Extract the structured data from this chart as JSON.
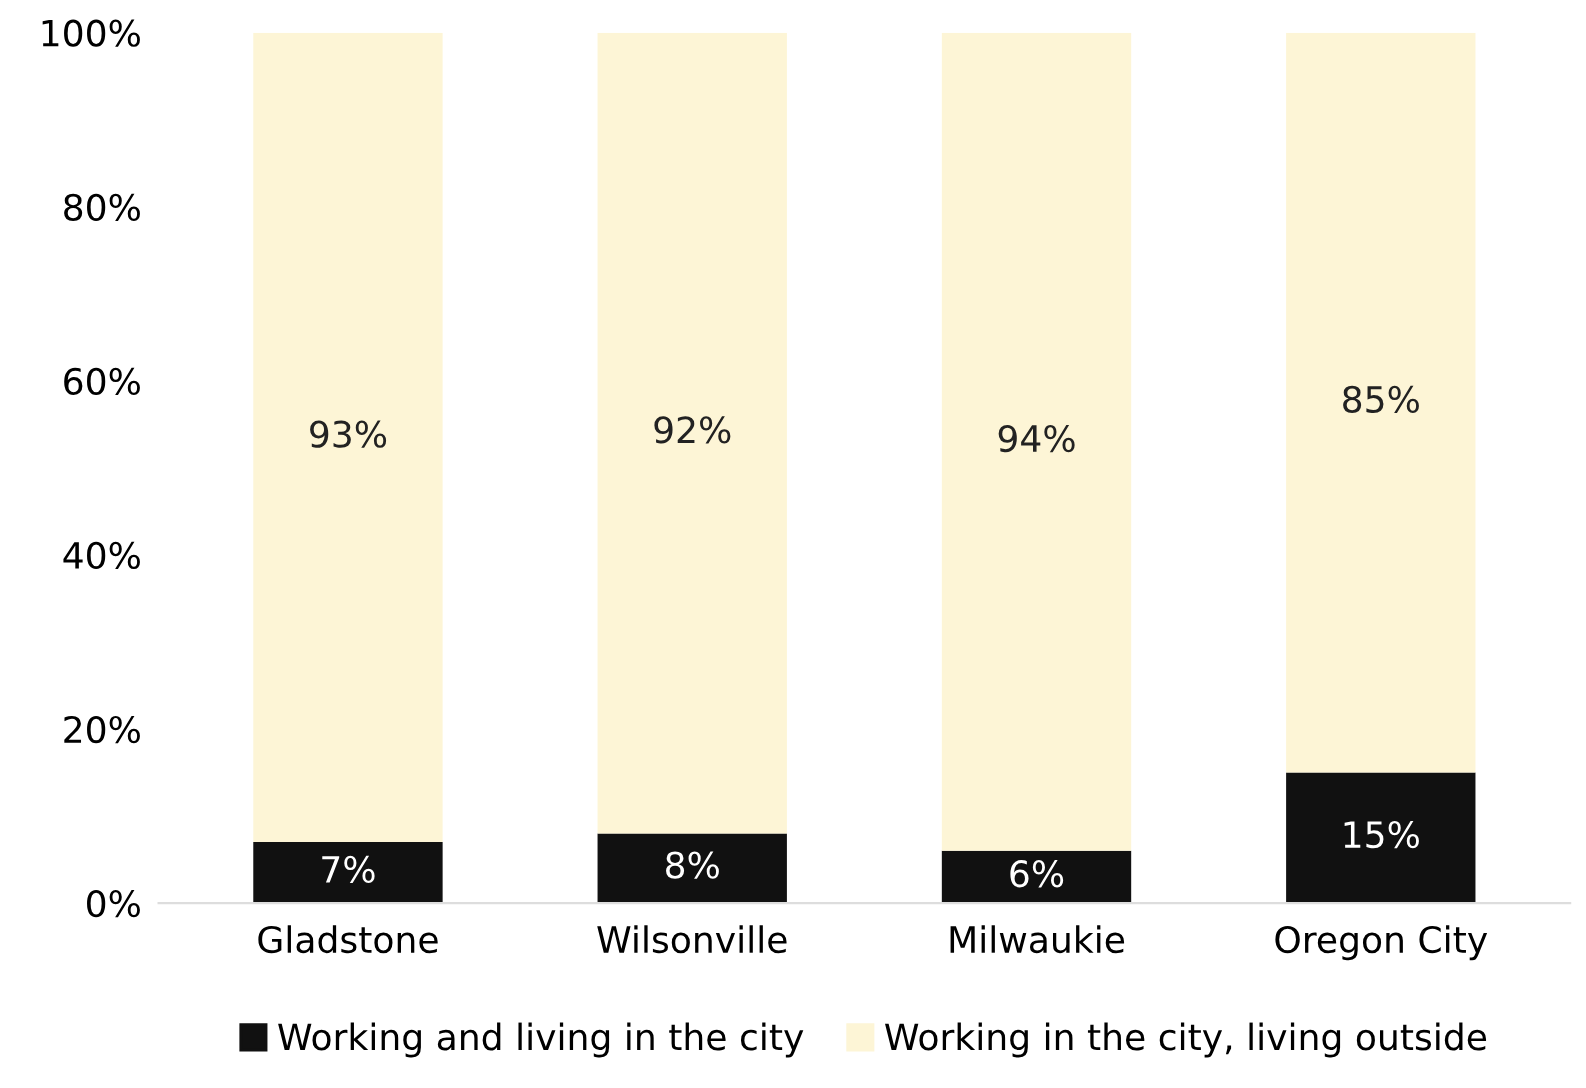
{
  "chart_data": {
    "type": "bar",
    "stacked": true,
    "categories": [
      "Gladstone",
      "Wilsonville",
      "Milwaukie",
      "Oregon City"
    ],
    "series": [
      {
        "name": "Working and living in the city",
        "color": "#111111",
        "values": [
          7,
          8,
          6,
          15
        ],
        "value_labels": [
          "7%",
          "8%",
          "6%",
          "15%"
        ]
      },
      {
        "name": "Working in the city, living outside",
        "color": "#fdf5d6",
        "values": [
          93,
          92,
          94,
          85
        ],
        "value_labels": [
          "93%",
          "92%",
          "94%",
          "85%"
        ]
      }
    ],
    "ylim": [
      0,
      100
    ],
    "yticks": [
      {
        "value": 0,
        "label": "0%"
      },
      {
        "value": 20,
        "label": "20%"
      },
      {
        "value": 40,
        "label": "40%"
      },
      {
        "value": 60,
        "label": "60%"
      },
      {
        "value": 80,
        "label": "80%"
      },
      {
        "value": 100,
        "label": "100%"
      }
    ],
    "grid": false,
    "legend": "bottom"
  }
}
